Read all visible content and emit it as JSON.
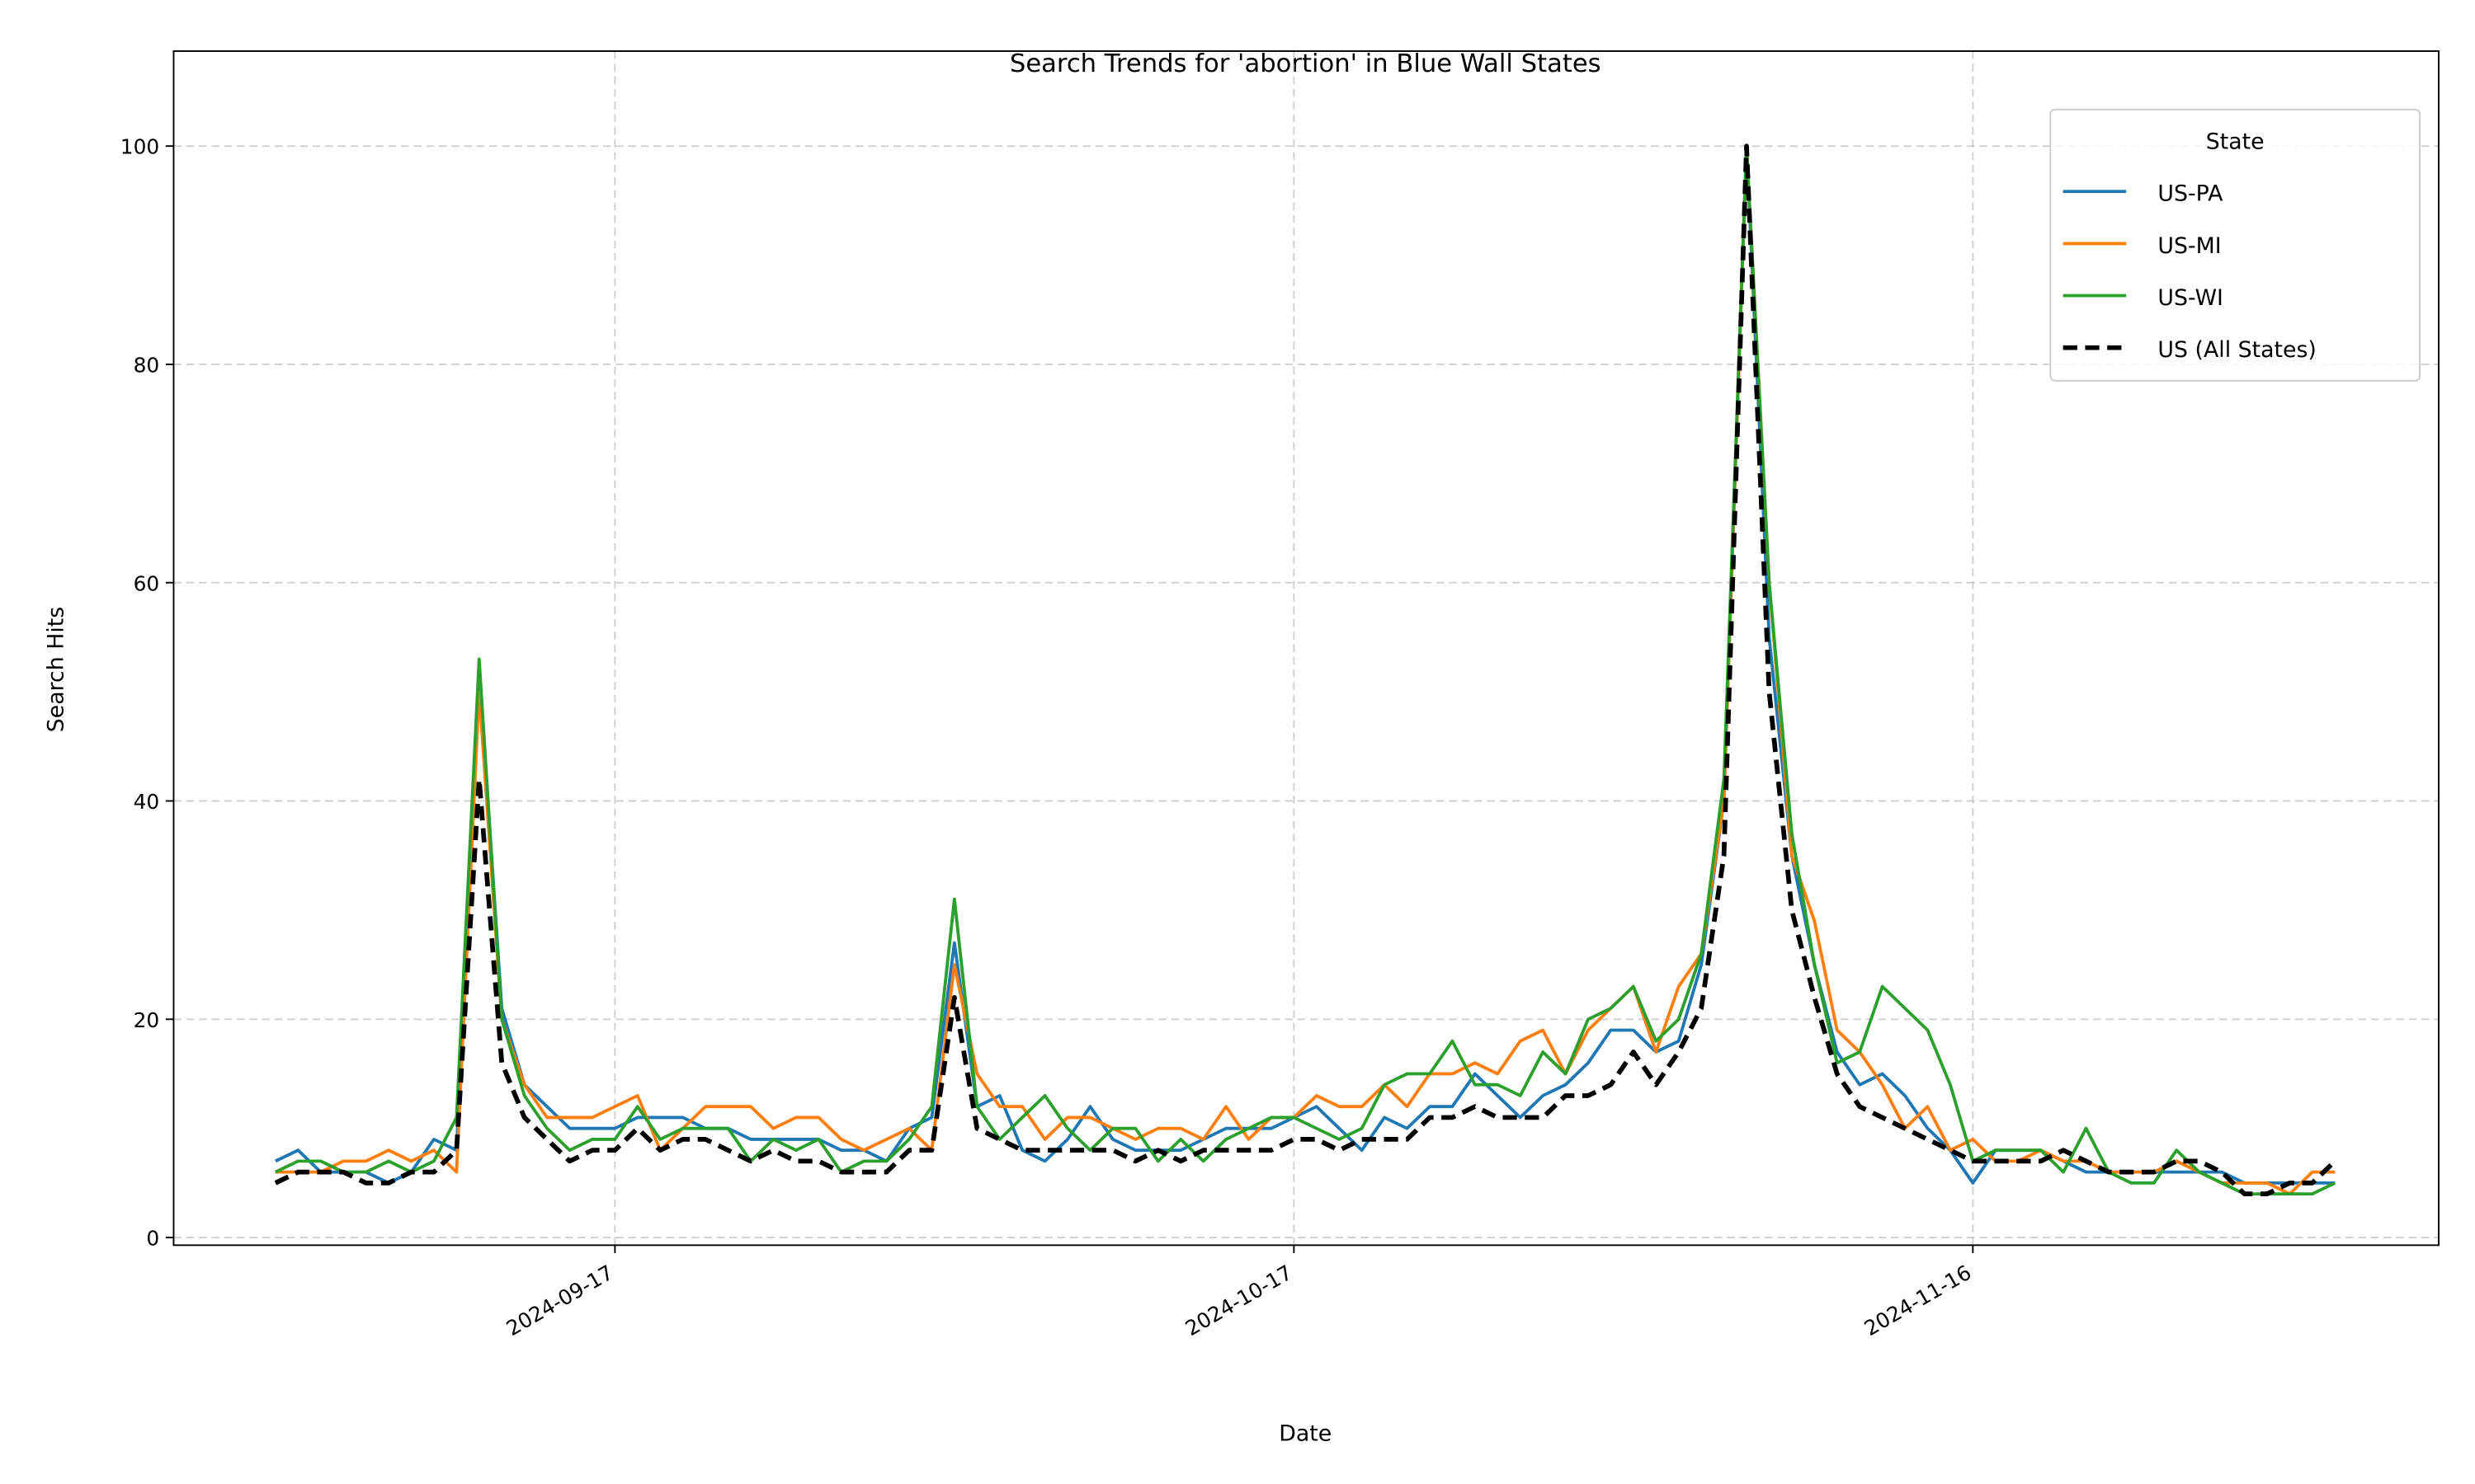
{
  "chart_data": {
    "type": "line",
    "title": "Search Trends for 'abortion' in Blue Wall States",
    "xlabel": "Date",
    "ylabel": "Search Hits",
    "x": [
      "2024-09-02",
      "2024-09-03",
      "2024-09-04",
      "2024-09-05",
      "2024-09-06",
      "2024-09-07",
      "2024-09-08",
      "2024-09-09",
      "2024-09-10",
      "2024-09-11",
      "2024-09-12",
      "2024-09-13",
      "2024-09-14",
      "2024-09-15",
      "2024-09-16",
      "2024-09-17",
      "2024-09-18",
      "2024-09-19",
      "2024-09-20",
      "2024-09-21",
      "2024-09-22",
      "2024-09-23",
      "2024-09-24",
      "2024-09-25",
      "2024-09-26",
      "2024-09-27",
      "2024-09-28",
      "2024-09-29",
      "2024-09-30",
      "2024-10-01",
      "2024-10-02",
      "2024-10-03",
      "2024-10-04",
      "2024-10-05",
      "2024-10-06",
      "2024-10-07",
      "2024-10-08",
      "2024-10-09",
      "2024-10-10",
      "2024-10-11",
      "2024-10-12",
      "2024-10-13",
      "2024-10-14",
      "2024-10-15",
      "2024-10-16",
      "2024-10-17",
      "2024-10-18",
      "2024-10-19",
      "2024-10-20",
      "2024-10-21",
      "2024-10-22",
      "2024-10-23",
      "2024-10-24",
      "2024-10-25",
      "2024-10-26",
      "2024-10-27",
      "2024-10-28",
      "2024-10-29",
      "2024-10-30",
      "2024-10-31",
      "2024-11-01",
      "2024-11-02",
      "2024-11-03",
      "2024-11-04",
      "2024-11-05",
      "2024-11-06",
      "2024-11-07",
      "2024-11-08",
      "2024-11-09",
      "2024-11-10",
      "2024-11-11",
      "2024-11-12",
      "2024-11-13",
      "2024-11-14",
      "2024-11-15",
      "2024-11-16",
      "2024-11-17",
      "2024-11-18",
      "2024-11-19",
      "2024-11-20",
      "2024-11-21",
      "2024-11-22",
      "2024-11-23",
      "2024-11-24",
      "2024-11-25",
      "2024-11-26",
      "2024-11-27",
      "2024-11-28",
      "2024-11-29",
      "2024-11-30",
      "2024-12-01",
      "2024-12-02"
    ],
    "series": [
      {
        "name": "US-PA",
        "color": "#1f77b4",
        "dash": false,
        "values": [
          7,
          8,
          6,
          6,
          6,
          5,
          6,
          9,
          8,
          52,
          21,
          14,
          12,
          10,
          10,
          10,
          11,
          11,
          11,
          10,
          10,
          9,
          9,
          9,
          9,
          8,
          8,
          7,
          10,
          11,
          27,
          12,
          13,
          8,
          7,
          9,
          12,
          9,
          8,
          8,
          8,
          9,
          10,
          10,
          10,
          11,
          12,
          10,
          8,
          11,
          10,
          12,
          12,
          15,
          13,
          11,
          13,
          14,
          16,
          19,
          19,
          17,
          18,
          25,
          40,
          100,
          55,
          35,
          25,
          17,
          14,
          15,
          13,
          10,
          8,
          5,
          8,
          8,
          8,
          7,
          6,
          6,
          6,
          6,
          6,
          6,
          6,
          5,
          5,
          5,
          5,
          5
        ]
      },
      {
        "name": "US-MI",
        "color": "#ff7f0e",
        "dash": false,
        "values": [
          6,
          6,
          6,
          7,
          7,
          8,
          7,
          8,
          6,
          50,
          20,
          14,
          11,
          11,
          11,
          12,
          13,
          8,
          10,
          12,
          12,
          12,
          10,
          11,
          11,
          9,
          8,
          9,
          10,
          8,
          25,
          15,
          12,
          12,
          9,
          11,
          11,
          10,
          9,
          10,
          10,
          9,
          12,
          9,
          11,
          11,
          13,
          12,
          12,
          14,
          12,
          15,
          15,
          16,
          15,
          18,
          19,
          15,
          19,
          21,
          23,
          17,
          23,
          26,
          40,
          100,
          60,
          35,
          29,
          19,
          17,
          14,
          10,
          12,
          8,
          9,
          7,
          7,
          8,
          7,
          7,
          6,
          6,
          6,
          7,
          6,
          5,
          5,
          5,
          4,
          6,
          6
        ]
      },
      {
        "name": "US-WI",
        "color": "#2ca02c",
        "dash": false,
        "values": [
          6,
          7,
          7,
          6,
          6,
          7,
          6,
          7,
          11,
          53,
          20,
          13,
          10,
          8,
          9,
          9,
          12,
          9,
          10,
          10,
          10,
          7,
          9,
          8,
          9,
          6,
          7,
          7,
          9,
          12,
          31,
          12,
          9,
          11,
          13,
          10,
          8,
          10,
          10,
          7,
          9,
          7,
          9,
          10,
          11,
          11,
          10,
          9,
          10,
          14,
          15,
          15,
          18,
          14,
          14,
          13,
          17,
          15,
          20,
          21,
          23,
          18,
          20,
          26,
          42,
          100,
          60,
          37,
          25,
          16,
          17,
          23,
          21,
          19,
          14,
          7,
          8,
          8,
          8,
          6,
          10,
          6,
          5,
          5,
          8,
          6,
          5,
          4,
          4,
          4,
          4,
          5
        ]
      },
      {
        "name": "US (All States)",
        "color": "#000000",
        "dash": true,
        "values": [
          5,
          6,
          6,
          6,
          5,
          5,
          6,
          6,
          8,
          42,
          16,
          11,
          9,
          7,
          8,
          8,
          10,
          8,
          9,
          9,
          8,
          7,
          8,
          7,
          7,
          6,
          6,
          6,
          8,
          8,
          22,
          10,
          9,
          8,
          8,
          8,
          8,
          8,
          7,
          8,
          7,
          8,
          8,
          8,
          8,
          9,
          9,
          8,
          9,
          9,
          9,
          11,
          11,
          12,
          11,
          11,
          11,
          13,
          13,
          14,
          17,
          14,
          17,
          21,
          35,
          100,
          50,
          30,
          22,
          15,
          12,
          11,
          10,
          9,
          8,
          7,
          7,
          7,
          7,
          8,
          7,
          6,
          6,
          6,
          7,
          7,
          6,
          4,
          4,
          5,
          5,
          7
        ]
      }
    ],
    "xlim": [
      "2024-08-28T12:00:00Z",
      "2024-12-06T14:00:00Z"
    ],
    "xticks": [
      "2024-09-17",
      "2024-10-17",
      "2024-11-16"
    ],
    "ylim": [
      -0.7,
      108.7
    ],
    "yticks": [
      0,
      20,
      40,
      60,
      80,
      100
    ],
    "grid": true,
    "legend_title": "State",
    "legend_loc": "upper right"
  }
}
